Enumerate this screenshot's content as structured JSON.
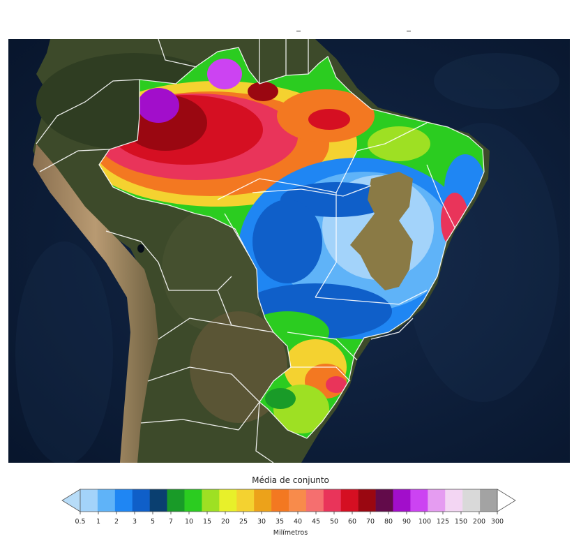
{
  "colorbar": {
    "title": "Média de conjunto",
    "units": "Milímetros",
    "labels": [
      "0.5",
      "1",
      "2",
      "3",
      "5",
      "7",
      "10",
      "15",
      "20",
      "25",
      "30",
      "35",
      "40",
      "45",
      "50",
      "60",
      "70",
      "80",
      "90",
      "100",
      "125",
      "150",
      "200",
      "300"
    ],
    "colors": [
      "#a3d3fa",
      "#5fb3f8",
      "#1f86f3",
      "#0f5fc9",
      "#0a3f70",
      "#199b28",
      "#2bcc20",
      "#9ee023",
      "#e8f02a",
      "#f4d230",
      "#eca21a",
      "#f37821",
      "#f88b4b",
      "#f56f6f",
      "#e9345a",
      "#d50f22",
      "#9a0711",
      "#620b4a",
      "#a20ecb",
      "#cc43f2",
      "#e59cf1",
      "#f3d6f3",
      "#d9d9d9",
      "#a3a3a3"
    ],
    "extend_min_color": "#b7dcf8",
    "extend_max_color": "#ffffff"
  },
  "map": {
    "region": "South America",
    "ocean_color": "#0a1a33",
    "land_color": "#3a4a2a",
    "border_color": "#ffffff"
  }
}
